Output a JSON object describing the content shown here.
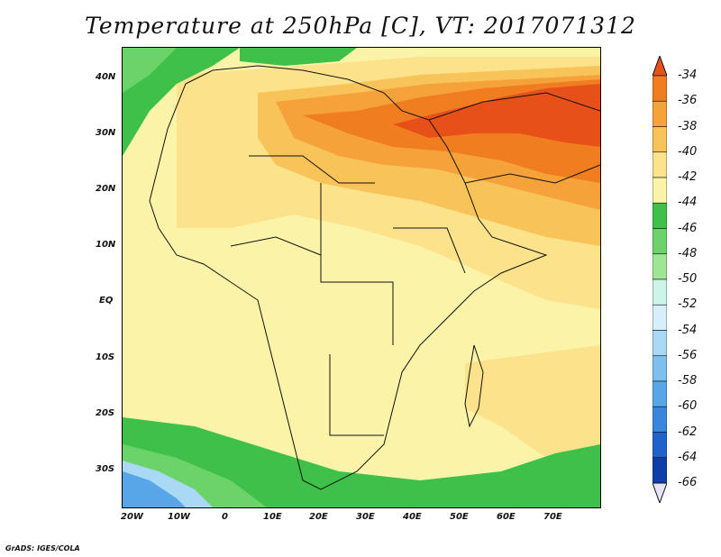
{
  "title": "Temperature at 250hPa [C], VT: 2017071312",
  "footer": "GrADS: IGES/COLA",
  "y_axis_labels": [
    "40N",
    "30N",
    "20N",
    "10N",
    "EQ",
    "10S",
    "20S",
    "30S"
  ],
  "x_axis_labels": [
    "20W",
    "10W",
    "0",
    "10E",
    "20E",
    "30E",
    "40E",
    "50E",
    "60E",
    "70E"
  ],
  "colorbar": {
    "labels": [
      "-34",
      "-36",
      "-38",
      "-40",
      "-42",
      "-44",
      "-46",
      "-48",
      "-50",
      "-52",
      "-54",
      "-56",
      "-58",
      "-60",
      "-62",
      "-64",
      "-66"
    ],
    "colors": [
      "#e8501a",
      "#f07d1f",
      "#f5a23a",
      "#f8c45a",
      "#fce28a",
      "#fbf3a8",
      "#3fc04a",
      "#6cd36b",
      "#9ce695",
      "#cdf4e8",
      "#d6f0fb",
      "#a9d9f5",
      "#7dc0ee",
      "#58a6e8",
      "#3a86dd",
      "#1f62cc",
      "#0e3ea8",
      "#091a78"
    ],
    "over_color": "#e8501a",
    "under_color": "#e3e3fb"
  },
  "map": {
    "variable": "Temperature at 250hPa",
    "units": "C",
    "valid_time": "2017071312",
    "region_lon_range": [
      "20W",
      "80E"
    ],
    "region_lat_range": [
      "37S",
      "45N"
    ]
  }
}
